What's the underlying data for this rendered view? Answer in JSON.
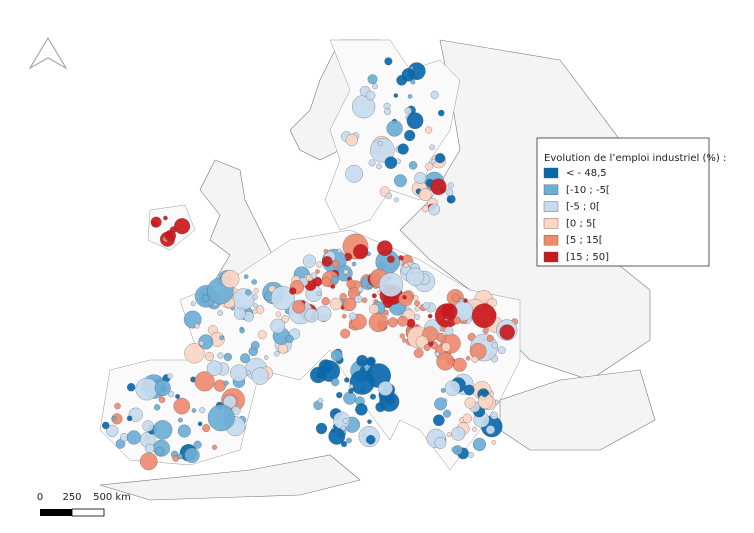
{
  "legend": {
    "title": "Evolution de l’emploi industriel (%) :",
    "items": [
      {
        "label": "< - 48,5",
        "color": "#0868ac"
      },
      {
        "label": "[-10 ; -5[",
        "color": "#6baed6"
      },
      {
        "label": "[-5 ; 0[",
        "color": "#c6dbef"
      },
      {
        "label": "[0 ; 5[",
        "color": "#fcd5c4"
      },
      {
        "label": "[5 ; 15[",
        "color": "#ef8a6f"
      },
      {
        "label": "[15 ; 50]",
        "color": "#cb181d"
      }
    ]
  },
  "scale_bar": {
    "labels": [
      "0",
      "250",
      "500 km"
    ]
  }
}
